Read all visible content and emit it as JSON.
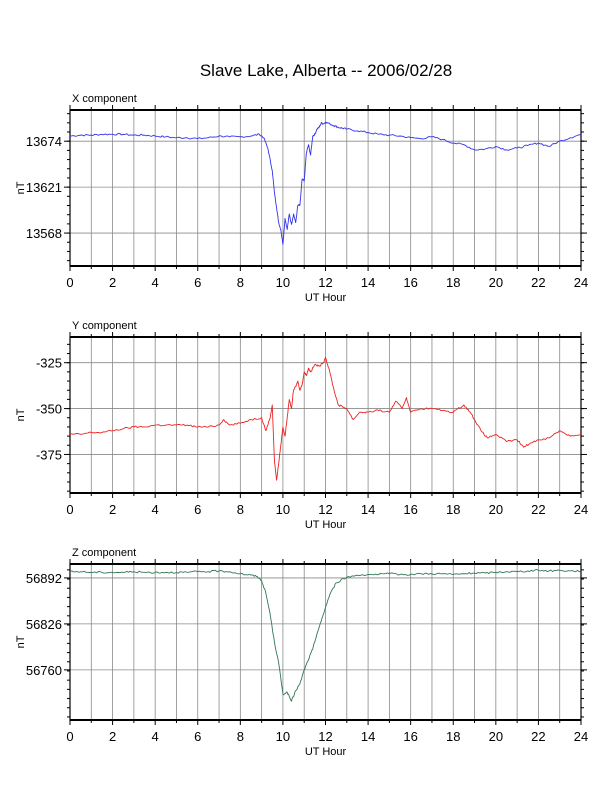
{
  "title": "Slave Lake, Alberta -- 2006/02/28",
  "chart_data": [
    {
      "type": "line",
      "panel_label": "X component",
      "xlabel": "UT Hour",
      "ylabel": "nT",
      "xlim": [
        0,
        24
      ],
      "ylim": [
        13530,
        13710
      ],
      "xticks": [
        0,
        2,
        4,
        6,
        8,
        10,
        12,
        14,
        16,
        18,
        20,
        22,
        24
      ],
      "yticks": [
        13568,
        13621,
        13674
      ],
      "grid": true,
      "color": "#3333ee",
      "series": [
        {
          "x": [
            0,
            0.5,
            1,
            1.5,
            2,
            2.5,
            3,
            3.5,
            4,
            4.5,
            5,
            5.5,
            6,
            6.5,
            7,
            7.5,
            8,
            8.5,
            8.9,
            9.1,
            9.3,
            9.5,
            9.6,
            9.7,
            9.8,
            9.9,
            10.0,
            10.1,
            10.2,
            10.3,
            10.4,
            10.5,
            10.6,
            10.7,
            10.8,
            10.9,
            11.0,
            11.1,
            11.2,
            11.3,
            11.4,
            11.5,
            11.6,
            11.7,
            11.8,
            11.9,
            12.0,
            12.2,
            12.4,
            12.6,
            12.8,
            13.0,
            13.5,
            14,
            14.5,
            15,
            15.5,
            16,
            16.5,
            17,
            17.5,
            18,
            18.5,
            19,
            19.5,
            20,
            20.5,
            21,
            21.5,
            22,
            22.5,
            23,
            23.5,
            24
          ],
          "y": [
            13680,
            13681,
            13681,
            13682,
            13682,
            13682,
            13681,
            13681,
            13680,
            13679,
            13678,
            13678,
            13677,
            13678,
            13680,
            13679,
            13679,
            13680,
            13682,
            13678,
            13665,
            13640,
            13615,
            13598,
            13580,
            13572,
            13555,
            13585,
            13572,
            13590,
            13578,
            13590,
            13580,
            13600,
            13600,
            13630,
            13628,
            13660,
            13670,
            13658,
            13680,
            13682,
            13688,
            13690,
            13695,
            13694,
            13696,
            13694,
            13692,
            13690,
            13689,
            13688,
            13686,
            13684,
            13682,
            13681,
            13680,
            13678,
            13677,
            13679,
            13676,
            13672,
            13670,
            13664,
            13665,
            13668,
            13664,
            13666,
            13669,
            13672,
            13668,
            13674,
            13678,
            13682
          ]
        }
      ]
    },
    {
      "type": "line",
      "panel_label": "Y component",
      "xlabel": "UT Hour",
      "ylabel": "nT",
      "xlim": [
        0,
        24
      ],
      "ylim": [
        -396,
        -311
      ],
      "xticks": [
        0,
        2,
        4,
        6,
        8,
        10,
        12,
        14,
        16,
        18,
        20,
        22,
        24
      ],
      "yticks": [
        -325,
        -350,
        -375
      ],
      "grid": true,
      "color": "#ee2222",
      "series": [
        {
          "x": [
            0,
            0.5,
            1,
            1.5,
            2,
            2.5,
            3,
            3.5,
            4,
            4.5,
            5,
            5.5,
            6,
            6.5,
            7,
            7.2,
            7.5,
            8,
            8.5,
            9.0,
            9.2,
            9.4,
            9.5,
            9.6,
            9.7,
            9.8,
            9.9,
            10.0,
            10.1,
            10.2,
            10.3,
            10.4,
            10.5,
            10.6,
            10.7,
            10.8,
            10.9,
            11.0,
            11.1,
            11.2,
            11.3,
            11.5,
            11.7,
            11.9,
            12.0,
            12.2,
            12.4,
            12.6,
            12.8,
            13.0,
            13.3,
            13.6,
            14,
            14.5,
            15,
            15.3,
            15.6,
            15.8,
            16,
            16.5,
            17,
            17.5,
            18,
            18.5,
            18.8,
            19.0,
            19.3,
            19.6,
            20,
            20.5,
            21,
            21.3,
            21.6,
            22,
            22.5,
            23,
            23.5,
            24
          ],
          "y": [
            -364,
            -364,
            -363,
            -363,
            -362,
            -361,
            -360,
            -360,
            -359,
            -359,
            -359,
            -359,
            -360,
            -360,
            -359,
            -356,
            -359,
            -358,
            -356,
            -355,
            -362,
            -355,
            -348,
            -378,
            -389,
            -380,
            -370,
            -360,
            -365,
            -355,
            -345,
            -350,
            -340,
            -338,
            -335,
            -340,
            -337,
            -330,
            -332,
            -328,
            -330,
            -326,
            -327,
            -325,
            -322,
            -330,
            -340,
            -348,
            -349,
            -350,
            -356,
            -352,
            -352,
            -351,
            -352,
            -346,
            -350,
            -344,
            -352,
            -350,
            -350,
            -351,
            -352,
            -348,
            -352,
            -356,
            -362,
            -366,
            -364,
            -368,
            -367,
            -371,
            -369,
            -367,
            -366,
            -362,
            -365,
            -364
          ]
        }
      ]
    },
    {
      "type": "line",
      "panel_label": "Z component",
      "xlabel": "UT Hour",
      "ylabel": "nT",
      "xlim": [
        0,
        24
      ],
      "ylim": [
        6688,
        6912
      ],
      "xticks": [
        0,
        2,
        4,
        6,
        8,
        10,
        12,
        14,
        16,
        18,
        20,
        22,
        24
      ],
      "yticks": [
        6892,
        6826,
        6760
      ],
      "ytick_labels": [
        "56892",
        "56826",
        "56760"
      ],
      "grid": true,
      "color": "#337755",
      "series": [
        {
          "x": [
            0,
            0.5,
            1,
            1.5,
            2,
            2.5,
            3,
            3.5,
            4,
            4.5,
            5,
            5.5,
            6,
            6.5,
            7,
            7.5,
            8,
            8.5,
            8.8,
            9.0,
            9.2,
            9.4,
            9.6,
            9.8,
            10.0,
            10.2,
            10.4,
            10.6,
            10.8,
            11.0,
            11.2,
            11.4,
            11.6,
            11.8,
            12.0,
            12.2,
            12.5,
            13.0,
            13.5,
            14,
            14.5,
            15,
            15.5,
            16,
            16.5,
            17,
            17.5,
            18,
            18.5,
            19,
            19.5,
            20,
            20.5,
            21,
            21.5,
            22,
            22.5,
            23,
            23.5,
            24
          ],
          "y": [
            6901,
            6901,
            6900,
            6900,
            6900,
            6900,
            6901,
            6900,
            6900,
            6900,
            6900,
            6900,
            6901,
            6901,
            6902,
            6901,
            6898,
            6896,
            6894,
            6888,
            6870,
            6840,
            6800,
            6770,
            6725,
            6728,
            6715,
            6730,
            6740,
            6760,
            6775,
            6790,
            6812,
            6830,
            6850,
            6868,
            6885,
            6893,
            6896,
            6897,
            6897,
            6898,
            6897,
            6897,
            6898,
            6898,
            6898,
            6897,
            6898,
            6899,
            6899,
            6900,
            6901,
            6901,
            6902,
            6903,
            6902,
            6903,
            6902,
            6902
          ]
        }
      ]
    }
  ]
}
